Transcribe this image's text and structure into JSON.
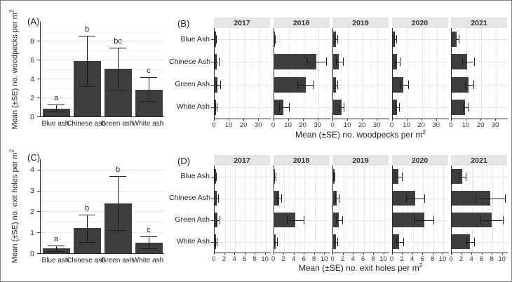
{
  "style": {
    "bar_color": "#3d3d3d",
    "error_color": "#1c1c1c",
    "strip_bg": "#e5e5e5",
    "grid_major": "#e4e4e4",
    "grid_minor": "#f2f2f2",
    "axis_color": "#2b2b2b",
    "frame_border": "#7d7d7d"
  },
  "chart_data": [
    {
      "id": "A",
      "type": "bar",
      "panel_label": "(A)",
      "ylabel_main": "Mean (±SE) no. woodpecks per m",
      "ylabel_sup": "2",
      "categories": [
        "Blue ash",
        "Chinese ash",
        "Green ash",
        "White ash"
      ],
      "values": [
        0.85,
        5.85,
        5.05,
        2.85
      ],
      "err_low": [
        0.5,
        3.2,
        2.8,
        1.6
      ],
      "err_high": [
        1.3,
        8.5,
        7.3,
        4.15
      ],
      "letters": [
        "a",
        "b",
        "bc",
        "c"
      ],
      "yticks": [
        0,
        2,
        4,
        6,
        8
      ],
      "ylim": [
        0,
        10
      ],
      "grid": true,
      "legend": "none"
    },
    {
      "id": "B",
      "type": "hbar-faceted",
      "panel_label": "(B)",
      "xlabel_main": "Mean (±SE) no. woodpecks per m",
      "xlabel_sup": "2",
      "categories": [
        "Blue Ash",
        "Chinese Ash",
        "Green Ash",
        "White Ash"
      ],
      "xticks": [
        0,
        10,
        20,
        30
      ],
      "xlim": [
        0,
        38
      ],
      "grid": true,
      "legend": "none",
      "facets": [
        {
          "year": "2017",
          "values": [
            0.4,
            1.5,
            2.0,
            0.9
          ],
          "err_low": [
            0.15,
            0.8,
            1.0,
            0.4
          ],
          "err_high": [
            0.8,
            2.6,
            3.6,
            1.5
          ]
        },
        {
          "year": "2018",
          "values": [
            0.5,
            28.5,
            21.5,
            6.5
          ],
          "err_low": [
            0.2,
            22.0,
            16.0,
            3.5
          ],
          "err_high": [
            0.9,
            35.5,
            27.0,
            10.0
          ]
        },
        {
          "year": "2019",
          "values": [
            1.8,
            4.0,
            1.8,
            5.5
          ],
          "err_low": [
            1.0,
            2.0,
            1.0,
            4.2
          ],
          "err_high": [
            2.8,
            6.5,
            2.8,
            7.0
          ]
        },
        {
          "year": "2020",
          "values": [
            1.8,
            3.0,
            7.5,
            3.0
          ],
          "err_low": [
            1.0,
            1.6,
            5.0,
            1.8
          ],
          "err_high": [
            2.8,
            5.0,
            10.5,
            4.4
          ]
        },
        {
          "year": "2021",
          "values": [
            3.5,
            10.5,
            11.5,
            9.0
          ],
          "err_low": [
            2.6,
            7.0,
            9.0,
            7.5
          ],
          "err_high": [
            4.6,
            15.0,
            14.5,
            11.0
          ]
        }
      ]
    },
    {
      "id": "C",
      "type": "bar",
      "panel_label": "(C)",
      "ylabel_main": "Mean (±SE) no. exit holes per m",
      "ylabel_sup": "2",
      "categories": [
        "Blue ash",
        "Chinese ash",
        "Green ash",
        "White ash"
      ],
      "values": [
        0.22,
        1.2,
        2.4,
        0.52
      ],
      "err_low": [
        0.1,
        0.55,
        1.1,
        0.22
      ],
      "err_high": [
        0.38,
        1.85,
        3.7,
        0.8
      ],
      "letters": [
        "a",
        "b",
        "b",
        "c"
      ],
      "yticks": [
        0,
        1,
        2,
        3,
        4
      ],
      "ylim": [
        0,
        4.5
      ],
      "grid": true,
      "legend": "none"
    },
    {
      "id": "D",
      "type": "hbar-faceted",
      "panel_label": "(D)",
      "xlabel_main": "Mean (±SE) no. exit holes per m",
      "xlabel_sup": "2",
      "categories": [
        "Blue Ash",
        "Chinese Ash",
        "Green Ash",
        "White Ash"
      ],
      "xticks": [
        0,
        2,
        4,
        6,
        8,
        10
      ],
      "xlim": [
        0,
        11
      ],
      "grid": true,
      "legend": "none",
      "facets": [
        {
          "year": "2017",
          "values": [
            0.15,
            0.4,
            0.55,
            0.2
          ],
          "err_low": [
            0.05,
            0.2,
            0.25,
            0.08
          ],
          "err_high": [
            0.3,
            0.65,
            0.9,
            0.4
          ]
        },
        {
          "year": "2018",
          "values": [
            0.1,
            1.0,
            4.2,
            0.3
          ],
          "err_low": [
            0.02,
            0.55,
            2.5,
            0.1
          ],
          "err_high": [
            0.3,
            1.45,
            5.9,
            0.6
          ]
        },
        {
          "year": "2019",
          "values": [
            0.12,
            0.7,
            1.1,
            0.5
          ],
          "err_low": [
            0.02,
            0.4,
            0.6,
            0.25
          ],
          "err_high": [
            0.3,
            1.05,
            1.75,
            0.85
          ]
        },
        {
          "year": "2020",
          "values": [
            1.1,
            4.5,
            6.2,
            1.3
          ],
          "err_low": [
            0.55,
            2.7,
            4.3,
            0.7
          ],
          "err_high": [
            1.8,
            6.3,
            8.1,
            2.1
          ]
        },
        {
          "year": "2021",
          "values": [
            2.0,
            7.5,
            7.8,
            3.6
          ],
          "err_low": [
            1.3,
            4.7,
            5.6,
            2.9
          ],
          "err_high": [
            2.7,
            10.4,
            10.0,
            4.4
          ]
        }
      ]
    }
  ]
}
